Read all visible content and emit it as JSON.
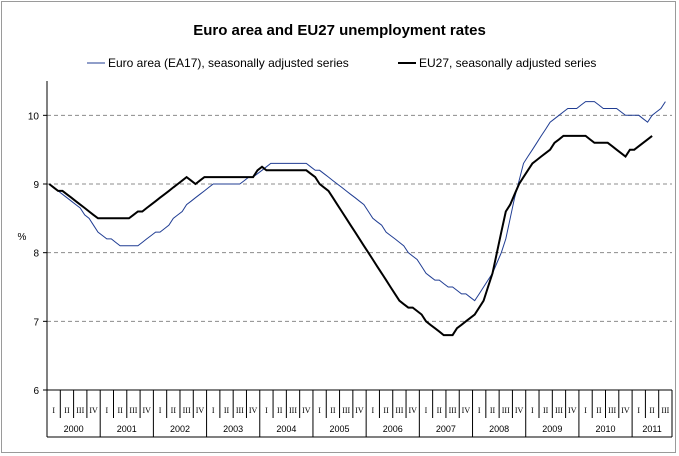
{
  "chart_data": {
    "type": "line",
    "title": "Euro area and EU27 unemployment rates",
    "ylabel": "%",
    "xlabel": "",
    "ylim": [
      6,
      10.5
    ],
    "yticks": [
      6,
      7,
      8,
      9,
      10
    ],
    "grid": "dashed horizontal",
    "legend_placement": "top",
    "years": [
      "2000",
      "2001",
      "2002",
      "2003",
      "2004",
      "2005",
      "2006",
      "2007",
      "2008",
      "2009",
      "2010",
      "2011"
    ],
    "quarters": [
      "I",
      "II",
      "III",
      "IV"
    ],
    "x_start": 2000.0,
    "x_step_months": 1,
    "series": [
      {
        "name": "Euro area (EA17), seasonally adjusted series",
        "color": "#203d93",
        "width": 1,
        "values": [
          9.0,
          8.95,
          8.9,
          8.85,
          8.8,
          8.75,
          8.7,
          8.65,
          8.55,
          8.5,
          8.4,
          8.3,
          8.25,
          8.2,
          8.2,
          8.15,
          8.1,
          8.1,
          8.1,
          8.1,
          8.1,
          8.15,
          8.2,
          8.25,
          8.3,
          8.3,
          8.35,
          8.4,
          8.5,
          8.55,
          8.6,
          8.7,
          8.75,
          8.8,
          8.85,
          8.9,
          8.95,
          9.0,
          9.0,
          9.0,
          9.0,
          9.0,
          9.0,
          9.0,
          9.05,
          9.1,
          9.1,
          9.15,
          9.2,
          9.25,
          9.3,
          9.3,
          9.3,
          9.3,
          9.3,
          9.3,
          9.3,
          9.3,
          9.3,
          9.25,
          9.2,
          9.2,
          9.15,
          9.1,
          9.05,
          9.0,
          8.95,
          8.9,
          8.85,
          8.8,
          8.75,
          8.7,
          8.6,
          8.5,
          8.45,
          8.4,
          8.3,
          8.25,
          8.2,
          8.15,
          8.1,
          8.0,
          7.95,
          7.9,
          7.8,
          7.7,
          7.65,
          7.6,
          7.6,
          7.55,
          7.5,
          7.5,
          7.45,
          7.4,
          7.4,
          7.35,
          7.3,
          7.4,
          7.5,
          7.6,
          7.7,
          7.85,
          8.0,
          8.2,
          8.5,
          8.8,
          9.05,
          9.3,
          9.4,
          9.5,
          9.6,
          9.7,
          9.8,
          9.9,
          9.95,
          10.0,
          10.05,
          10.1,
          10.1,
          10.1,
          10.15,
          10.2,
          10.2,
          10.2,
          10.15,
          10.1,
          10.1,
          10.1,
          10.1,
          10.05,
          10.0,
          10.0,
          10.0,
          10.0,
          9.95,
          9.9,
          10.0,
          10.05,
          10.1,
          10.2
        ]
      },
      {
        "name": "EU27, seasonally adjusted series",
        "color": "#000000",
        "width": 2,
        "values": [
          9.0,
          8.95,
          8.9,
          8.9,
          8.85,
          8.8,
          8.75,
          8.7,
          8.65,
          8.6,
          8.55,
          8.5,
          8.5,
          8.5,
          8.5,
          8.5,
          8.5,
          8.5,
          8.5,
          8.55,
          8.6,
          8.6,
          8.65,
          8.7,
          8.75,
          8.8,
          8.85,
          8.9,
          8.95,
          9.0,
          9.05,
          9.1,
          9.05,
          9.0,
          9.05,
          9.1,
          9.1,
          9.1,
          9.1,
          9.1,
          9.1,
          9.1,
          9.1,
          9.1,
          9.1,
          9.1,
          9.1,
          9.2,
          9.25,
          9.2,
          9.2,
          9.2,
          9.2,
          9.2,
          9.2,
          9.2,
          9.2,
          9.2,
          9.2,
          9.15,
          9.1,
          9.0,
          8.95,
          8.9,
          8.8,
          8.7,
          8.6,
          8.5,
          8.4,
          8.3,
          8.2,
          8.1,
          8.0,
          7.9,
          7.8,
          7.7,
          7.6,
          7.5,
          7.4,
          7.3,
          7.25,
          7.2,
          7.2,
          7.15,
          7.1,
          7.0,
          6.95,
          6.9,
          6.85,
          6.8,
          6.8,
          6.8,
          6.9,
          6.95,
          7.0,
          7.05,
          7.1,
          7.2,
          7.3,
          7.5,
          7.7,
          8.0,
          8.3,
          8.6,
          8.7,
          8.85,
          9.0,
          9.1,
          9.2,
          9.3,
          9.35,
          9.4,
          9.45,
          9.5,
          9.6,
          9.65,
          9.7,
          9.7,
          9.7,
          9.7,
          9.7,
          9.7,
          9.65,
          9.6,
          9.6,
          9.6,
          9.6,
          9.55,
          9.5,
          9.45,
          9.4,
          9.5,
          9.5,
          9.55,
          9.6,
          9.65,
          9.7
        ]
      }
    ]
  }
}
